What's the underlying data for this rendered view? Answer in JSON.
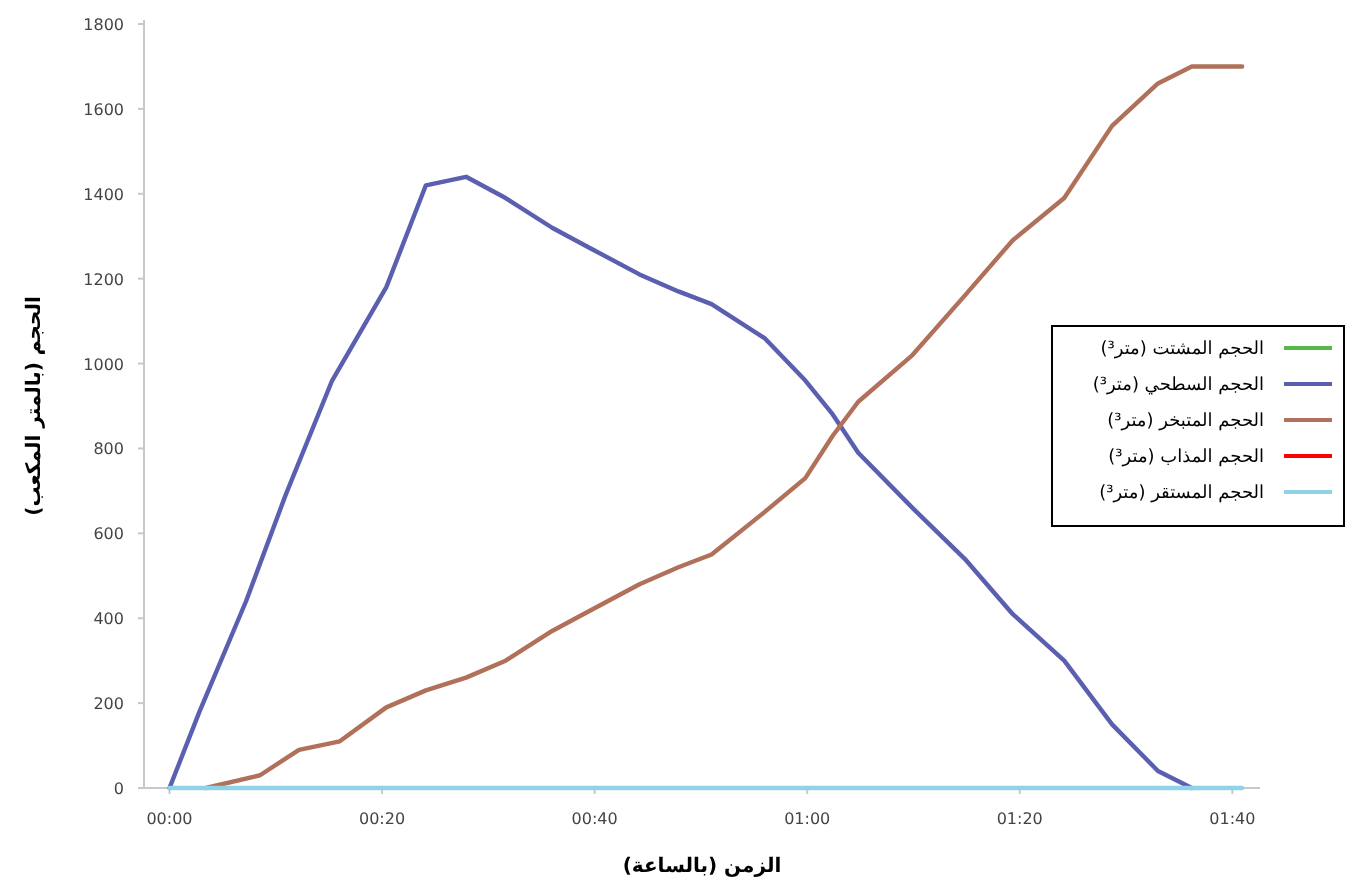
{
  "chart_data": {
    "type": "line",
    "xlabel": "الزمن (بالساعة)",
    "ylabel": "الحجم (بالمتر المكعب)",
    "xlim": [
      -0.04,
      1.71
    ],
    "ylim": [
      0,
      1800
    ],
    "xticks": [
      {
        "value": 0,
        "label": "00:00"
      },
      {
        "value": 0.3333,
        "label": "00:20"
      },
      {
        "value": 0.6667,
        "label": "00:40"
      },
      {
        "value": 1,
        "label": "01:00"
      },
      {
        "value": 1.3333,
        "label": "01:20"
      },
      {
        "value": 1.6667,
        "label": "01:40"
      }
    ],
    "yticks": [
      0,
      200,
      400,
      600,
      800,
      1000,
      1200,
      1400,
      1600,
      1800
    ],
    "grid": false,
    "legend": "right",
    "marker": "none",
    "line_style": "solid",
    "series": [
      {
        "name": "الحجم المشتت (متر³)",
        "color": "#55b848",
        "values": [
          null
        ]
      },
      {
        "name": "الحجم السطحي (متر³)",
        "color": "#5a5fb0",
        "x": [
          0,
          0.047,
          0.12,
          0.182,
          0.255,
          0.34,
          0.402,
          0.465,
          0.527,
          0.6,
          0.662,
          0.737,
          0.798,
          0.85,
          0.933,
          0.997,
          1.04,
          1.08,
          1.165,
          1.247,
          1.322,
          1.403,
          1.478,
          1.55,
          1.603
        ],
        "values": [
          0,
          180,
          440,
          690,
          960,
          1180,
          1420,
          1440,
          1390,
          1320,
          1270,
          1210,
          1170,
          1140,
          1060,
          960,
          880,
          790,
          660,
          540,
          410,
          300,
          150,
          40,
          0
        ]
      },
      {
        "name": "الحجم المتبخر (متر³)",
        "color": "#b0705a",
        "x": [
          0.057,
          0.142,
          0.203,
          0.267,
          0.34,
          0.402,
          0.465,
          0.527,
          0.6,
          0.662,
          0.737,
          0.798,
          0.85,
          0.933,
          0.997,
          1.04,
          1.08,
          1.165,
          1.247,
          1.322,
          1.403,
          1.478,
          1.55,
          1.603,
          1.682
        ],
        "values": [
          0,
          30,
          90,
          110,
          190,
          230,
          260,
          300,
          370,
          420,
          480,
          520,
          550,
          650,
          730,
          830,
          910,
          1020,
          1160,
          1290,
          1390,
          1560,
          1660,
          1700,
          1700
        ]
      },
      {
        "name": "الحجم المذاب (متر³)",
        "color": "#ff0000",
        "values": [
          null
        ]
      },
      {
        "name": "الحجم المستقر (متر³)",
        "color": "#8fd3e8",
        "x": [
          0,
          1.682
        ],
        "values": [
          0,
          0
        ]
      }
    ]
  }
}
